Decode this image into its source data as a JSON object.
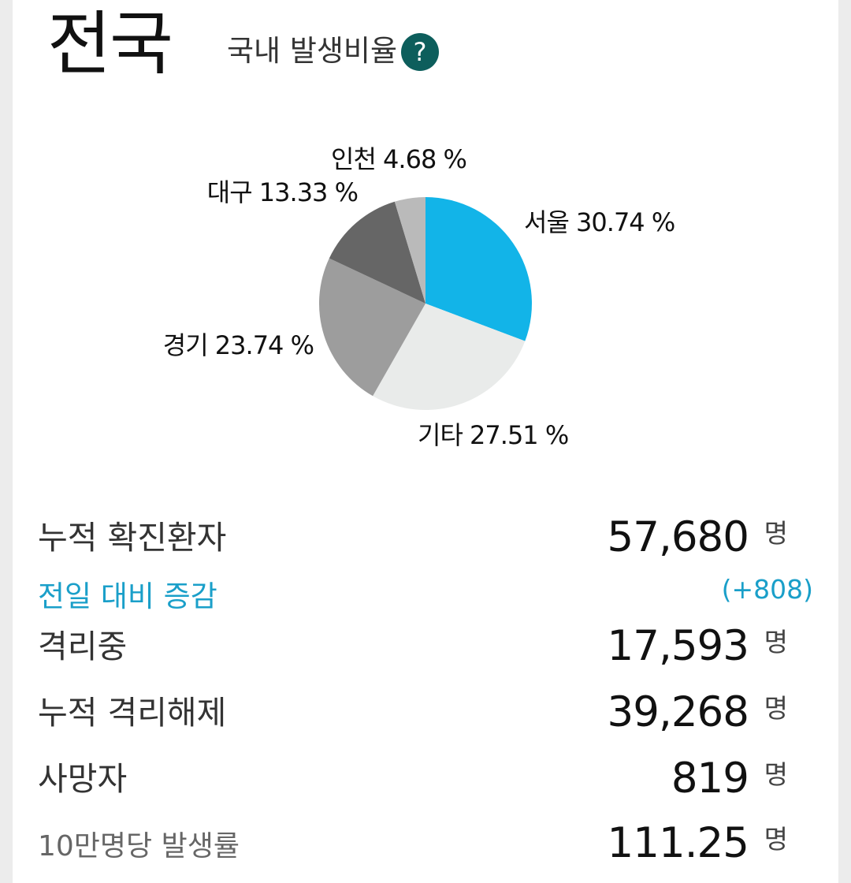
{
  "header": {
    "region": "전국",
    "subtitle": "국내 발생비율",
    "help_glyph": "?"
  },
  "colors": {
    "seoul": "#12b4e8",
    "other": "#e9ebea",
    "gyeonggi": "#9d9d9d",
    "daegu": "#666666",
    "incheon": "#bababa",
    "delta": "#1a9fc9",
    "help_badge": "#0d5e5c"
  },
  "chart_data": {
    "type": "pie",
    "slices": [
      {
        "label": "서울",
        "value": 30.74,
        "display": "서울 30.74 %",
        "color": "#12b4e8"
      },
      {
        "label": "기타",
        "value": 27.51,
        "display": "기타 27.51 %",
        "color": "#e9ebea"
      },
      {
        "label": "경기",
        "value": 23.74,
        "display": "경기 23.74 %",
        "color": "#9d9d9d"
      },
      {
        "label": "대구",
        "value": 13.33,
        "display": "대구 13.33 %",
        "color": "#666666"
      },
      {
        "label": "인천",
        "value": 4.68,
        "display": "인천 4.68 %",
        "color": "#bababa"
      }
    ]
  },
  "stats": {
    "cumulative": {
      "label": "누적 확진환자",
      "value": "57,680",
      "unit": "명"
    },
    "delta": {
      "label": "전일 대비 증감",
      "value": "(+808)"
    },
    "isolating": {
      "label": "격리중",
      "value": "17,593",
      "unit": "명"
    },
    "released": {
      "label": "누적 격리해제",
      "value": "39,268",
      "unit": "명"
    },
    "deaths": {
      "label": "사망자",
      "value": "819",
      "unit": "명"
    },
    "rate": {
      "label": "10만명당 발생률",
      "value": "111.25",
      "unit": "명"
    }
  }
}
